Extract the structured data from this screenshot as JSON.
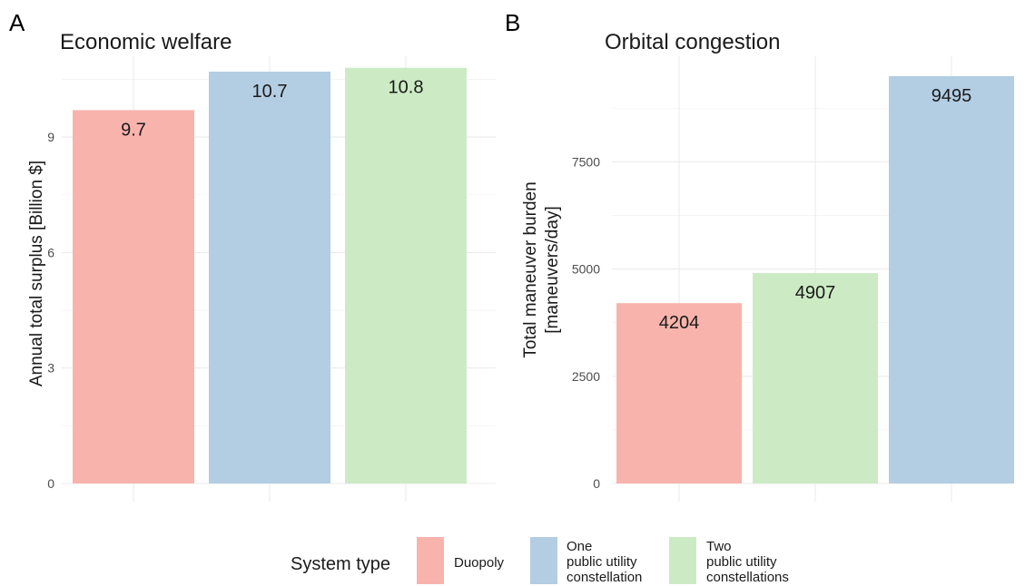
{
  "chart_data": [
    {
      "type": "bar",
      "panel": "A",
      "title": "Economic welfare",
      "ylabel": "Annual total surplus [Billion $]",
      "xlabel": "",
      "ylim": [
        0,
        11.1
      ],
      "yticks": [
        "0",
        "3",
        "6",
        "9"
      ],
      "ytick_values": [
        0,
        3,
        6,
        9
      ],
      "bars": [
        {
          "category": "Duopoly",
          "value": 9.7,
          "label": "9.7",
          "color": "#f8b4ac"
        },
        {
          "category": "One public utility constellation",
          "value": 10.7,
          "label": "10.7",
          "color": "#b3cde3"
        },
        {
          "category": "Two public utility constellations",
          "value": 10.8,
          "label": "10.8",
          "color": "#ccebc5"
        }
      ],
      "grid": true
    },
    {
      "type": "bar",
      "panel": "B",
      "title": "Orbital congestion",
      "ylabel": [
        "Total maneuver burden",
        "[maneuvers/day]"
      ],
      "xlabel": "",
      "ylim": [
        0,
        9960
      ],
      "yticks": [
        "0",
        "2500",
        "5000",
        "7500"
      ],
      "ytick_values": [
        0,
        2500,
        5000,
        7500
      ],
      "bars": [
        {
          "category": "Duopoly",
          "value": 4204,
          "label": "4204",
          "color": "#f8b4ac"
        },
        {
          "category": "Two public utility constellations",
          "value": 4907,
          "label": "4907",
          "color": "#ccebc5"
        },
        {
          "category": "One public utility constellation",
          "value": 9495,
          "label": "9495",
          "color": "#b3cde3"
        }
      ],
      "grid": true
    }
  ],
  "legend": {
    "title": "System type",
    "placement": "bottom",
    "items": [
      {
        "lines": [
          "Duopoly"
        ],
        "color": "#f8b4ac"
      },
      {
        "lines": [
          "One",
          "public utility",
          "constellation"
        ],
        "color": "#b3cde3"
      },
      {
        "lines": [
          "Two",
          "public utility",
          "constellations"
        ],
        "color": "#ccebc5"
      }
    ]
  }
}
